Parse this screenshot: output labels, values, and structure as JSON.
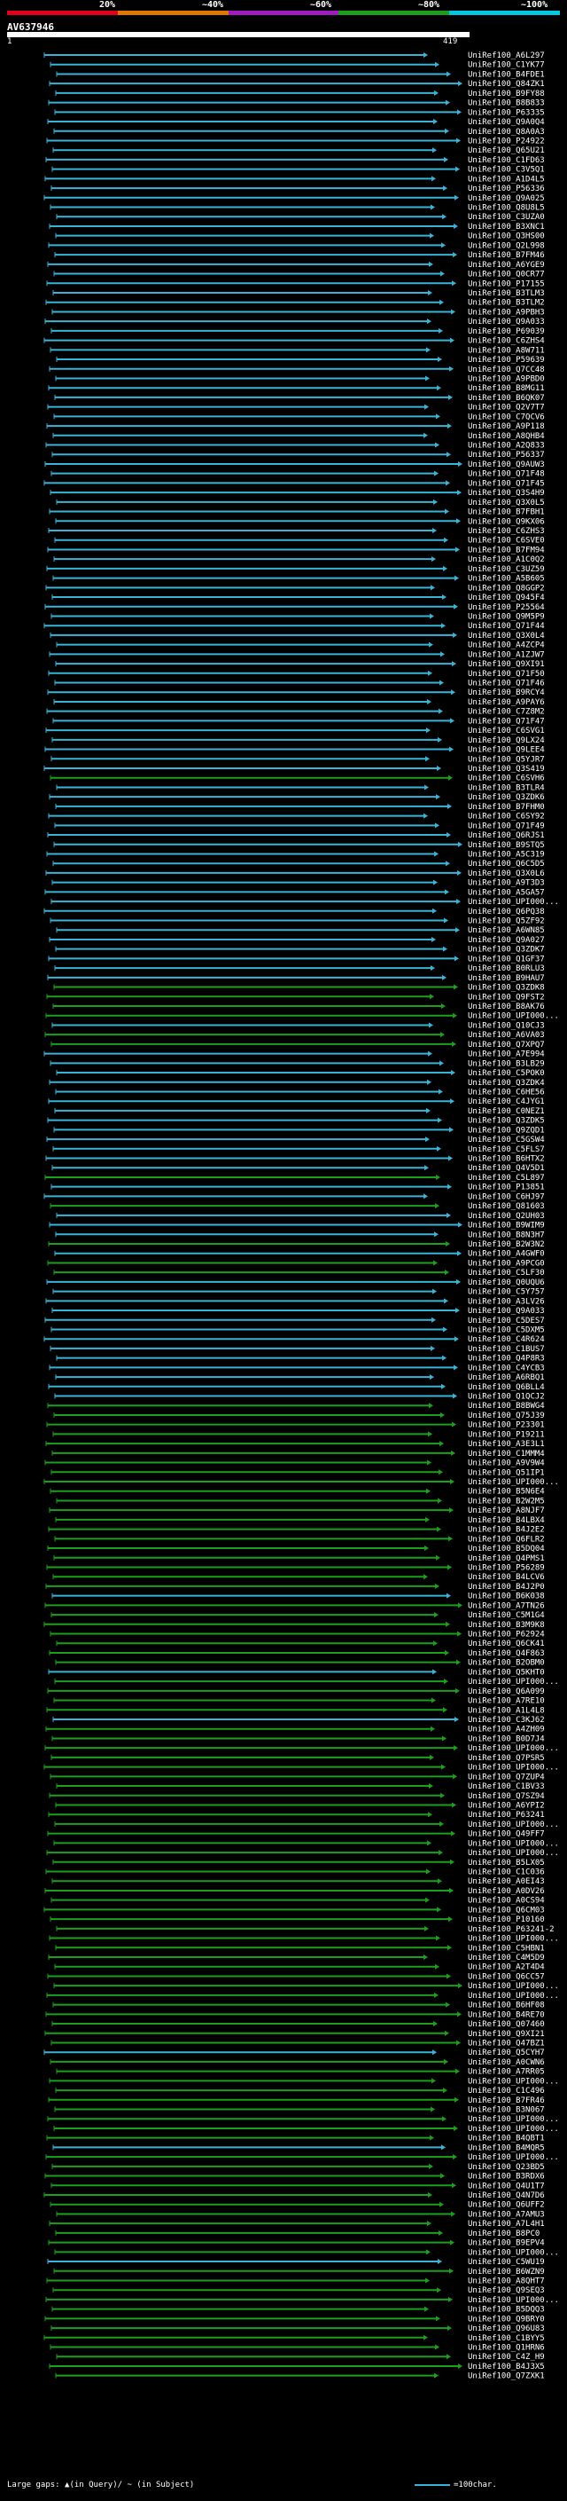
{
  "query": {
    "id": "AV637946",
    "start": "1",
    "end": "419"
  },
  "legend": {
    "labels": [
      "20%",
      "~40%",
      "~60%",
      "~80%",
      "~100%"
    ],
    "colors": [
      "#e0001a",
      "#e07800",
      "#a01cc0",
      "#1ca01c",
      "#00c8e0"
    ]
  },
  "hits": [
    {
      "label": "UniRef100_A6L297",
      "color": "#3ab4d6"
    },
    {
      "label": "UniRef100_C1YK77",
      "color": "#3ab4d6"
    },
    {
      "label": "UniRef100_B4FDE1",
      "color": "#3ab4d6"
    },
    {
      "label": "UniRef100_Q84ZK1",
      "color": "#3ab4d6"
    },
    {
      "label": "UniRef100_B9FY88",
      "color": "#3ab4d6"
    },
    {
      "label": "UniRef100_B8B833",
      "color": "#3ab4d6"
    },
    {
      "label": "UniRef100_P63335",
      "color": "#3ab4d6"
    },
    {
      "label": "UniRef100_Q9A0Q4",
      "color": "#3ab4d6"
    },
    {
      "label": "UniRef100_Q8A0A3",
      "color": "#3ab4d6"
    },
    {
      "label": "UniRef100_P24922",
      "color": "#3ab4d6"
    },
    {
      "label": "UniRef100_Q65U21",
      "color": "#3ab4d6"
    },
    {
      "label": "UniRef100_C1FD63",
      "color": "#3ab4d6"
    },
    {
      "label": "UniRef100_C3V5Q1",
      "color": "#3ab4d6"
    },
    {
      "label": "UniRef100_A1D4L5",
      "color": "#3ab4d6"
    },
    {
      "label": "UniRef100_P56336",
      "color": "#3ab4d6"
    },
    {
      "label": "UniRef100_Q9A025",
      "color": "#3ab4d6"
    },
    {
      "label": "UniRef100_Q8U8L5",
      "color": "#3ab4d6"
    },
    {
      "label": "UniRef100_C3UZA0",
      "color": "#3ab4d6"
    },
    {
      "label": "UniRef100_B3XNC1",
      "color": "#3ab4d6"
    },
    {
      "label": "UniRef100_Q3HS00",
      "color": "#3ab4d6"
    },
    {
      "label": "UniRef100_Q2L998",
      "color": "#3ab4d6"
    },
    {
      "label": "UniRef100_B7FM46",
      "color": "#3ab4d6"
    },
    {
      "label": "UniRef100_A6YGE9",
      "color": "#3ab4d6"
    },
    {
      "label": "UniRef100_Q0CR77",
      "color": "#3ab4d6"
    },
    {
      "label": "UniRef100_P17155",
      "color": "#3ab4d6"
    },
    {
      "label": "UniRef100_B3TLM3",
      "color": "#3ab4d6"
    },
    {
      "label": "UniRef100_B3TLM2",
      "color": "#3ab4d6"
    },
    {
      "label": "UniRef100_A9PBH3",
      "color": "#3ab4d6"
    },
    {
      "label": "UniRef100_Q9A033",
      "color": "#3ab4d6"
    },
    {
      "label": "UniRef100_P69039",
      "color": "#3ab4d6"
    },
    {
      "label": "UniRef100_C6ZHS4",
      "color": "#3ab4d6"
    },
    {
      "label": "UniRef100_A8W711",
      "color": "#3ab4d6"
    },
    {
      "label": "UniRef100_P59639",
      "color": "#3ab4d6"
    },
    {
      "label": "UniRef100_Q7CC48",
      "color": "#3ab4d6"
    },
    {
      "label": "UniRef100_A9PBD0",
      "color": "#3ab4d6"
    },
    {
      "label": "UniRef100_B8MG11",
      "color": "#3ab4d6"
    },
    {
      "label": "UniRef100_B6QK07",
      "color": "#3ab4d6"
    },
    {
      "label": "UniRef100_Q2V7T7",
      "color": "#3ab4d6"
    },
    {
      "label": "UniRef100_C7QCV6",
      "color": "#3ab4d6"
    },
    {
      "label": "UniRef100_A9P118",
      "color": "#3ab4d6"
    },
    {
      "label": "UniRef100_A8QHB4",
      "color": "#3ab4d6"
    },
    {
      "label": "UniRef100_A2Q833",
      "color": "#3ab4d6"
    },
    {
      "label": "UniRef100_P56337",
      "color": "#3ab4d6"
    },
    {
      "label": "UniRef100_Q9AUW3",
      "color": "#3ab4d6"
    },
    {
      "label": "UniRef100_Q71F48",
      "color": "#3ab4d6"
    },
    {
      "label": "UniRef100_Q71F45",
      "color": "#3ab4d6"
    },
    {
      "label": "UniRef100_Q3S4H9",
      "color": "#3ab4d6"
    },
    {
      "label": "UniRef100_Q3X0L5",
      "color": "#3ab4d6"
    },
    {
      "label": "UniRef100_B7FBH1",
      "color": "#3ab4d6"
    },
    {
      "label": "UniRef100_Q9KX06",
      "color": "#3ab4d6"
    },
    {
      "label": "UniRef100_C6ZHS3",
      "color": "#3ab4d6"
    },
    {
      "label": "UniRef100_C6SVE0",
      "color": "#3ab4d6"
    },
    {
      "label": "UniRef100_B7FM94",
      "color": "#3ab4d6"
    },
    {
      "label": "UniRef100_A1C0Q2",
      "color": "#3ab4d6"
    },
    {
      "label": "UniRef100_C3UZ59",
      "color": "#3ab4d6"
    },
    {
      "label": "UniRef100_A5B605",
      "color": "#3ab4d6"
    },
    {
      "label": "UniRef100_Q8GGP2",
      "color": "#3ab4d6"
    },
    {
      "label": "UniRef100_Q945F4",
      "color": "#3ab4d6"
    },
    {
      "label": "UniRef100_P25564",
      "color": "#3ab4d6"
    },
    {
      "label": "UniRef100_Q9M5P9",
      "color": "#3ab4d6"
    },
    {
      "label": "UniRef100_Q71F44",
      "color": "#3ab4d6"
    },
    {
      "label": "UniRef100_Q3X0L4",
      "color": "#3ab4d6"
    },
    {
      "label": "UniRef100_A4ZCP4",
      "color": "#3ab4d6"
    },
    {
      "label": "UniRef100_A1ZJW7",
      "color": "#3ab4d6"
    },
    {
      "label": "UniRef100_Q9XI91",
      "color": "#3ab4d6"
    },
    {
      "label": "UniRef100_Q71F50",
      "color": "#3ab4d6"
    },
    {
      "label": "UniRef100_Q71F46",
      "color": "#3ab4d6"
    },
    {
      "label": "UniRef100_B9RCY4",
      "color": "#3ab4d6"
    },
    {
      "label": "UniRef100_A9PAY6",
      "color": "#3ab4d6"
    },
    {
      "label": "UniRef100_C7Z8M2",
      "color": "#3ab4d6"
    },
    {
      "label": "UniRef100_Q71F47",
      "color": "#3ab4d6"
    },
    {
      "label": "UniRef100_C6SVG1",
      "color": "#3ab4d6"
    },
    {
      "label": "UniRef100_Q9LX24",
      "color": "#3ab4d6"
    },
    {
      "label": "UniRef100_Q9LEE4",
      "color": "#3ab4d6"
    },
    {
      "label": "UniRef100_Q5YJR7",
      "color": "#3ab4d6"
    },
    {
      "label": "UniRef100_Q3S419",
      "color": "#3ab4d6"
    },
    {
      "label": "UniRef100_C6SVH6",
      "color": "#1ca01c"
    },
    {
      "label": "UniRef100_B3TLR4",
      "color": "#3ab4d6"
    },
    {
      "label": "UniRef100_Q3ZDK6",
      "color": "#3ab4d6"
    },
    {
      "label": "UniRef100_B7FHM0",
      "color": "#3ab4d6"
    },
    {
      "label": "UniRef100_C6SY92",
      "color": "#3ab4d6"
    },
    {
      "label": "UniRef100_Q71F49",
      "color": "#3ab4d6"
    },
    {
      "label": "UniRef100_Q6RJS1",
      "color": "#3ab4d6"
    },
    {
      "label": "UniRef100_B9STQ5",
      "color": "#3ab4d6"
    },
    {
      "label": "UniRef100_A5C319",
      "color": "#3ab4d6"
    },
    {
      "label": "UniRef100_Q6C5D5",
      "color": "#3ab4d6"
    },
    {
      "label": "UniRef100_Q3X0L6",
      "color": "#3ab4d6"
    },
    {
      "label": "UniRef100_A9T3D3",
      "color": "#3ab4d6"
    },
    {
      "label": "UniRef100_A5GA57",
      "color": "#3ab4d6"
    },
    {
      "label": "UniRef100_UPI000...",
      "color": "#3ab4d6"
    },
    {
      "label": "UniRef100_Q6PQ38",
      "color": "#3ab4d6"
    },
    {
      "label": "UniRef100_Q5ZF92",
      "color": "#3ab4d6"
    },
    {
      "label": "UniRef100_A6WN85",
      "color": "#3ab4d6"
    },
    {
      "label": "UniRef100_Q9A027",
      "color": "#3ab4d6"
    },
    {
      "label": "UniRef100_Q3ZDK7",
      "color": "#3ab4d6"
    },
    {
      "label": "UniRef100_Q1GF37",
      "color": "#3ab4d6"
    },
    {
      "label": "UniRef100_B0RLU3",
      "color": "#3ab4d6"
    },
    {
      "label": "UniRef100_B9HAU7",
      "color": "#3ab4d6"
    },
    {
      "label": "UniRef100_Q3ZDK8",
      "color": "#1ca01c"
    },
    {
      "label": "UniRef100_Q9FST2",
      "color": "#1ca01c"
    },
    {
      "label": "UniRef100_B8AK76",
      "color": "#1ca01c"
    },
    {
      "label": "UniRef100_UPI000...",
      "color": "#1ca01c"
    },
    {
      "label": "UniRef100_Q10CJ3",
      "color": "#3ab4d6"
    },
    {
      "label": "UniRef100_A6VA03",
      "color": "#1ca01c"
    },
    {
      "label": "UniRef100_Q7XPQ7",
      "color": "#1ca01c"
    },
    {
      "label": "UniRef100_A7E994",
      "color": "#3ab4d6"
    },
    {
      "label": "UniRef100_B3LB29",
      "color": "#3ab4d6"
    },
    {
      "label": "UniRef100_C5POK0",
      "color": "#3ab4d6"
    },
    {
      "label": "UniRef100_Q3ZDK4",
      "color": "#3ab4d6"
    },
    {
      "label": "UniRef100_C6HE56",
      "color": "#3ab4d6"
    },
    {
      "label": "UniRef100_C4JYG1",
      "color": "#3ab4d6"
    },
    {
      "label": "UniRef100_C0NEZ1",
      "color": "#3ab4d6"
    },
    {
      "label": "UniRef100_Q3ZDK5",
      "color": "#3ab4d6"
    },
    {
      "label": "UniRef100_Q9ZQD1",
      "color": "#3ab4d6"
    },
    {
      "label": "UniRef100_C5GSW4",
      "color": "#3ab4d6"
    },
    {
      "label": "UniRef100_C5FLS7",
      "color": "#3ab4d6"
    },
    {
      "label": "UniRef100_B6HTX2",
      "color": "#3ab4d6"
    },
    {
      "label": "UniRef100_Q4V5D1",
      "color": "#3ab4d6"
    },
    {
      "label": "UniRef100_C5L897",
      "color": "#1ca01c"
    },
    {
      "label": "UniRef100_P13851",
      "color": "#3ab4d6"
    },
    {
      "label": "UniRef100_C6HJ97",
      "color": "#3ab4d6"
    },
    {
      "label": "UniRef100_Q81603",
      "color": "#1ca01c"
    },
    {
      "label": "UniRef100_Q2UH03",
      "color": "#3ab4d6"
    },
    {
      "label": "UniRef100_B9WIM9",
      "color": "#3ab4d6"
    },
    {
      "label": "UniRef100_B8N3H7",
      "color": "#3ab4d6"
    },
    {
      "label": "UniRef100_B2W3N2",
      "color": "#1ca01c"
    },
    {
      "label": "UniRef100_A4GWF0",
      "color": "#3ab4d6"
    },
    {
      "label": "UniRef100_A9PCG0",
      "color": "#1ca01c"
    },
    {
      "label": "UniRef100_C5LF30",
      "color": "#1ca01c"
    },
    {
      "label": "UniRef100_Q0UQU6",
      "color": "#3ab4d6"
    },
    {
      "label": "UniRef100_C5Y757",
      "color": "#3ab4d6"
    },
    {
      "label": "UniRef100_A3LV26",
      "color": "#3ab4d6"
    },
    {
      "label": "UniRef100_Q9A033",
      "color": "#3ab4d6"
    },
    {
      "label": "UniRef100_C5DES7",
      "color": "#3ab4d6"
    },
    {
      "label": "UniRef100_C5DXM5",
      "color": "#3ab4d6"
    },
    {
      "label": "UniRef100_C4R624",
      "color": "#3ab4d6"
    },
    {
      "label": "UniRef100_C1BUS7",
      "color": "#3ab4d6"
    },
    {
      "label": "UniRef100_Q4P8R3",
      "color": "#3ab4d6"
    },
    {
      "label": "UniRef100_C4YCB3",
      "color": "#3ab4d6"
    },
    {
      "label": "UniRef100_A6RBQ1",
      "color": "#3ab4d6"
    },
    {
      "label": "UniRef100_Q6BLL4",
      "color": "#3ab4d6"
    },
    {
      "label": "UniRef100_Q1QCJ2",
      "color": "#3ab4d6"
    },
    {
      "label": "UniRef100_B8BWG4",
      "color": "#1ca01c"
    },
    {
      "label": "UniRef100_Q75J39",
      "color": "#1ca01c"
    },
    {
      "label": "UniRef100_P23301",
      "color": "#1ca01c"
    },
    {
      "label": "UniRef100_P19211",
      "color": "#1ca01c"
    },
    {
      "label": "UniRef100_A3E3L1",
      "color": "#1ca01c"
    },
    {
      "label": "UniRef100_C1MMM4",
      "color": "#1ca01c"
    },
    {
      "label": "UniRef100_A9V9W4",
      "color": "#1ca01c"
    },
    {
      "label": "UniRef100_Q51IP1",
      "color": "#1ca01c"
    },
    {
      "label": "UniRef100_UPI000...",
      "color": "#1ca01c"
    },
    {
      "label": "UniRef100_B5N6E4",
      "color": "#1ca01c"
    },
    {
      "label": "UniRef100_B2W2M5",
      "color": "#1ca01c"
    },
    {
      "label": "UniRef100_A8NJF7",
      "color": "#1ca01c"
    },
    {
      "label": "UniRef100_B4LBX4",
      "color": "#1ca01c"
    },
    {
      "label": "UniRef100_B4J2E2",
      "color": "#1ca01c"
    },
    {
      "label": "UniRef100_Q6FLR2",
      "color": "#1ca01c"
    },
    {
      "label": "UniRef100_B5DQ04",
      "color": "#1ca01c"
    },
    {
      "label": "UniRef100_Q4PMS1",
      "color": "#1ca01c"
    },
    {
      "label": "UniRef100_P56289",
      "color": "#1ca01c"
    },
    {
      "label": "UniRef100_B4LCV6",
      "color": "#1ca01c"
    },
    {
      "label": "UniRef100_B4J2P0",
      "color": "#1ca01c"
    },
    {
      "label": "UniRef100_B6K038",
      "color": "#3ab4d6"
    },
    {
      "label": "UniRef100_A7TN26",
      "color": "#1ca01c"
    },
    {
      "label": "UniRef100_C5M1G4",
      "color": "#1ca01c"
    },
    {
      "label": "UniRef100_B3M9K8",
      "color": "#1ca01c"
    },
    {
      "label": "UniRef100_P62924",
      "color": "#1ca01c"
    },
    {
      "label": "UniRef100_Q6CK41",
      "color": "#1ca01c"
    },
    {
      "label": "UniRef100_Q4F863",
      "color": "#1ca01c"
    },
    {
      "label": "UniRef100_B2OBM0",
      "color": "#1ca01c"
    },
    {
      "label": "UniRef100_Q5KHT0",
      "color": "#3ab4d6"
    },
    {
      "label": "UniRef100_UPI000...",
      "color": "#1ca01c"
    },
    {
      "label": "UniRef100_Q6A099",
      "color": "#1ca01c"
    },
    {
      "label": "UniRef100_A7RE10",
      "color": "#1ca01c"
    },
    {
      "label": "UniRef100_A1L4L8",
      "color": "#1ca01c"
    },
    {
      "label": "UniRef100_C3KJ62",
      "color": "#3ab4d6"
    },
    {
      "label": "UniRef100_A4ZH09",
      "color": "#1ca01c"
    },
    {
      "label": "UniRef100_B0D7J4",
      "color": "#1ca01c"
    },
    {
      "label": "UniRef100_UPI000...",
      "color": "#1ca01c"
    },
    {
      "label": "UniRef100_Q7PSR5",
      "color": "#1ca01c"
    },
    {
      "label": "UniRef100_UPI000...",
      "color": "#1ca01c"
    },
    {
      "label": "UniRef100_Q7ZUP4",
      "color": "#1ca01c"
    },
    {
      "label": "UniRef100_C1BV33",
      "color": "#1ca01c"
    },
    {
      "label": "UniRef100_Q7SZ94",
      "color": "#1ca01c"
    },
    {
      "label": "UniRef100_A6YPI2",
      "color": "#1ca01c"
    },
    {
      "label": "UniRef100_P63241",
      "color": "#1ca01c"
    },
    {
      "label": "UniRef100_UPI000...",
      "color": "#1ca01c"
    },
    {
      "label": "UniRef100_Q49FF7",
      "color": "#1ca01c"
    },
    {
      "label": "UniRef100_UPI000...",
      "color": "#1ca01c"
    },
    {
      "label": "UniRef100_UPI000...",
      "color": "#1ca01c"
    },
    {
      "label": "UniRef100_B5LX05",
      "color": "#1ca01c"
    },
    {
      "label": "UniRef100_C1C036",
      "color": "#1ca01c"
    },
    {
      "label": "UniRef100_A0EI43",
      "color": "#1ca01c"
    },
    {
      "label": "UniRef100_A0DV26",
      "color": "#1ca01c"
    },
    {
      "label": "UniRef100_A0CS94",
      "color": "#1ca01c"
    },
    {
      "label": "UniRef100_Q6CM03",
      "color": "#1ca01c"
    },
    {
      "label": "UniRef100_P10160",
      "color": "#1ca01c"
    },
    {
      "label": "UniRef100_P63241-2",
      "color": "#1ca01c"
    },
    {
      "label": "UniRef100_UPI000...",
      "color": "#1ca01c"
    },
    {
      "label": "UniRef100_C5HBN1",
      "color": "#1ca01c"
    },
    {
      "label": "UniRef100_C4M5D9",
      "color": "#1ca01c"
    },
    {
      "label": "UniRef100_A2T4D4",
      "color": "#1ca01c"
    },
    {
      "label": "UniRef100_Q6CC57",
      "color": "#1ca01c"
    },
    {
      "label": "UniRef100_UPI000...",
      "color": "#1ca01c"
    },
    {
      "label": "UniRef100_UPI000...",
      "color": "#1ca01c"
    },
    {
      "label": "UniRef100_B6HF08",
      "color": "#1ca01c"
    },
    {
      "label": "UniRef100_B4RE70",
      "color": "#1ca01c"
    },
    {
      "label": "UniRef100_Q07460",
      "color": "#1ca01c"
    },
    {
      "label": "UniRef100_Q9XI21",
      "color": "#1ca01c"
    },
    {
      "label": "UniRef100_Q47BZ1",
      "color": "#1ca01c"
    },
    {
      "label": "UniRef100_Q5CYH7",
      "color": "#3ab4d6"
    },
    {
      "label": "UniRef100_A0CWN6",
      "color": "#1ca01c"
    },
    {
      "label": "UniRef100_A7RR05",
      "color": "#1ca01c"
    },
    {
      "label": "UniRef100_UPI000...",
      "color": "#1ca01c"
    },
    {
      "label": "UniRef100_C1C496",
      "color": "#1ca01c"
    },
    {
      "label": "UniRef100_B7FR46",
      "color": "#1ca01c"
    },
    {
      "label": "UniRef100_B3N067",
      "color": "#1ca01c"
    },
    {
      "label": "UniRef100_UPI000...",
      "color": "#1ca01c"
    },
    {
      "label": "UniRef100_UPI000...",
      "color": "#1ca01c"
    },
    {
      "label": "UniRef100_B4QBT1",
      "color": "#1ca01c"
    },
    {
      "label": "UniRef100_B4MQR5",
      "color": "#3ab4d6"
    },
    {
      "label": "UniRef100_UPI000...",
      "color": "#1ca01c"
    },
    {
      "label": "UniRef100_Q23BD5",
      "color": "#1ca01c"
    },
    {
      "label": "UniRef100_B3RDX6",
      "color": "#1ca01c"
    },
    {
      "label": "UniRef100_Q4U1T7",
      "color": "#1ca01c"
    },
    {
      "label": "UniRef100_Q4N7D6",
      "color": "#1ca01c"
    },
    {
      "label": "UniRef100_Q6UFF2",
      "color": "#1ca01c"
    },
    {
      "label": "UniRef100_A7AMU3",
      "color": "#1ca01c"
    },
    {
      "label": "UniRef100_A7L4H1",
      "color": "#1ca01c"
    },
    {
      "label": "UniRef100_B8PC0",
      "color": "#1ca01c"
    },
    {
      "label": "UniRef100_B9EPV4",
      "color": "#1ca01c"
    },
    {
      "label": "UniRef100_UPI000...",
      "color": "#1ca01c"
    },
    {
      "label": "UniRef100_C5WU19",
      "color": "#3ab4d6"
    },
    {
      "label": "UniRef100_B6WZN9",
      "color": "#1ca01c"
    },
    {
      "label": "UniRef100_A8QHT7",
      "color": "#1ca01c"
    },
    {
      "label": "UniRef100_Q9SEQ3",
      "color": "#1ca01c"
    },
    {
      "label": "UniRef100_UPI000...",
      "color": "#1ca01c"
    },
    {
      "label": "UniRef100_B5DQQ3",
      "color": "#1ca01c"
    },
    {
      "label": "UniRef100_Q9BRY0",
      "color": "#1ca01c"
    },
    {
      "label": "UniRef100_Q96U83",
      "color": "#1ca01c"
    },
    {
      "label": "UniRef100_C1BYY5",
      "color": "#1ca01c"
    },
    {
      "label": "UniRef100_Q1HRN6",
      "color": "#1ca01c"
    },
    {
      "label": "UniRef100_C4Z_H9",
      "color": "#1ca01c"
    },
    {
      "label": "UniRef100_B4J3X5",
      "color": "#1ca01c"
    },
    {
      "label": "UniRef100_Q7ZXK1",
      "color": "#1ca01c"
    }
  ],
  "footer": {
    "large_gaps": "Large gaps: ▲(in Query)/ ~ (in Subject)",
    "scale": "=100char."
  }
}
